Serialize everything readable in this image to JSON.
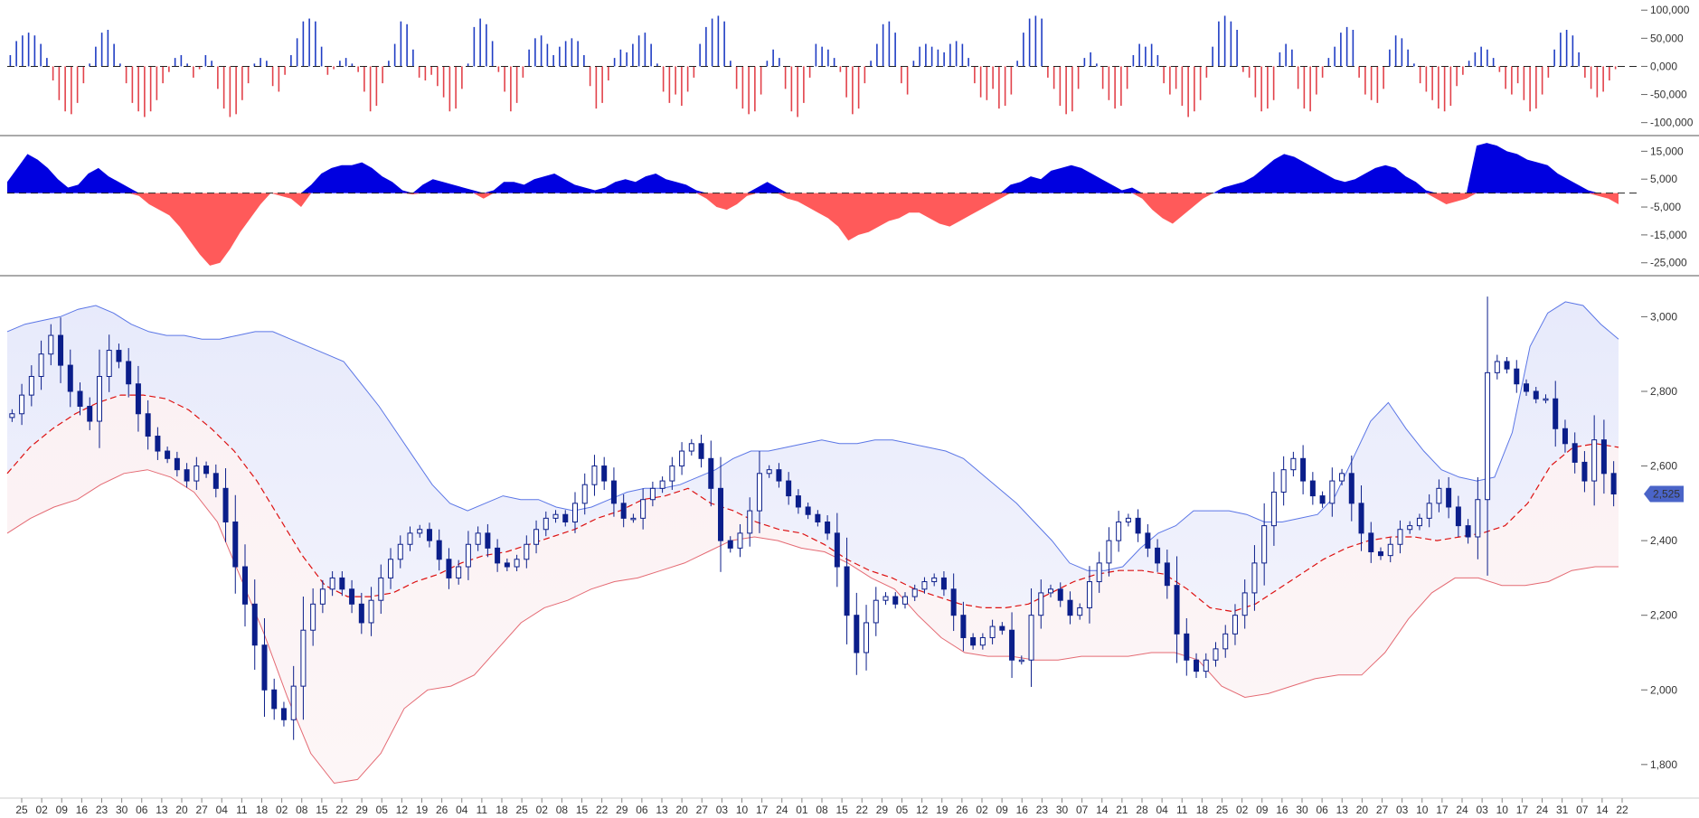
{
  "colors": {
    "up_bar": "#1f3dc4",
    "down_bar": "#e2424a",
    "pos_area": "#0000e0",
    "neg_area": "#ff5a5a",
    "candle": "#0b1e8a",
    "upper_band": "#5b76e6",
    "lower_band": "#e46a73",
    "mid_line": "#dd1111",
    "band_fill_top": "#eceefb",
    "band_fill_bottom": "#fbf0f2",
    "price_badge": "#4a64c8",
    "separator": "#555555"
  },
  "price_label": "2,525",
  "chart_data": [
    {
      "type": "bar",
      "panel": "oscillator-histogram",
      "y_ticks": [
        "100,000",
        "50,000",
        "0,000",
        "-50,000",
        "-100,000"
      ],
      "y_tick_values": [
        100000,
        50000,
        0,
        -50000,
        -100000
      ],
      "ylim": [
        -115000,
        110000
      ],
      "grid": false,
      "series": [
        {
          "values": [
            20000,
            45000,
            55000,
            60000,
            55000,
            40000,
            15000,
            -25000,
            -60000,
            -80000,
            -85000,
            -65000,
            -30000,
            5000,
            35000,
            60000,
            65000,
            40000,
            5000,
            -30000,
            -65000,
            -80000,
            -90000,
            -80000,
            -60000,
            -30000,
            -10000,
            15000,
            20000,
            5000,
            -20000,
            -5000,
            20000,
            10000,
            -40000,
            -75000,
            -90000,
            -85000,
            -60000,
            -30000,
            5000,
            15000,
            10000,
            -35000,
            -45000,
            -15000,
            20000,
            50000,
            80000,
            85000,
            80000,
            35000,
            -15000,
            -5000,
            10000,
            15000,
            5000,
            -10000,
            -45000,
            -80000,
            -70000,
            -30000,
            10000,
            40000,
            80000,
            75000,
            30000,
            -20000,
            -25000,
            -15000,
            -35000,
            -55000,
            -80000,
            -75000,
            -40000,
            5000,
            70000,
            85000,
            75000,
            45000,
            -10000,
            -45000,
            -80000,
            -65000,
            -20000,
            30000,
            50000,
            55000,
            40000,
            20000,
            35000,
            45000,
            50000,
            45000,
            20000,
            -35000,
            -75000,
            -65000,
            -25000,
            15000,
            30000,
            25000,
            40000,
            55000,
            60000,
            40000,
            5000,
            -45000,
            -65000,
            -50000,
            -70000,
            -45000,
            -20000,
            40000,
            70000,
            85000,
            90000,
            80000,
            10000,
            -40000,
            -75000,
            -85000,
            -80000,
            -50000,
            10000,
            30000,
            15000,
            -40000,
            -80000,
            -90000,
            -65000,
            -20000,
            40000,
            35000,
            30000,
            15000,
            -10000,
            -55000,
            -85000,
            -75000,
            -30000,
            10000,
            40000,
            75000,
            80000,
            60000,
            -30000,
            -50000,
            10000,
            35000,
            40000,
            35000,
            30000,
            25000,
            40000,
            45000,
            40000,
            15000,
            -30000,
            -55000,
            -60000,
            -40000,
            -75000,
            -70000,
            -50000,
            10000,
            60000,
            85000,
            90000,
            85000,
            -20000,
            -40000,
            -70000,
            -85000,
            -80000,
            -40000,
            15000,
            25000,
            5000,
            -40000,
            -60000,
            -75000,
            -70000,
            -40000,
            20000,
            40000,
            35000,
            40000,
            20000,
            -30000,
            -50000,
            -40000,
            -70000,
            -90000,
            -80000,
            -60000,
            -20000,
            35000,
            80000,
            90000,
            80000,
            65000,
            -10000,
            -20000,
            -55000,
            -80000,
            -75000,
            -60000,
            25000,
            40000,
            30000,
            -40000,
            -75000,
            -80000,
            -50000,
            -20000,
            15000,
            35000,
            60000,
            70000,
            65000,
            -20000,
            -50000,
            -60000,
            -65000,
            -40000,
            30000,
            55000,
            50000,
            30000,
            5000,
            -30000,
            -45000,
            -60000,
            -75000,
            -80000,
            -70000,
            -35000,
            -15000,
            10000,
            25000,
            35000,
            30000,
            15000,
            -10000,
            -40000,
            -50000,
            -30000,
            -60000,
            -80000,
            -75000,
            -50000,
            -20000,
            30000,
            60000,
            65000,
            55000,
            25000,
            -20000,
            -40000,
            -55000,
            -45000,
            -25000,
            -5000
          ]
        }
      ]
    },
    {
      "type": "area",
      "panel": "oscillator-area",
      "y_ticks": [
        "15,000",
        "5,000",
        "-5,000",
        "-15,000",
        "-25,000"
      ],
      "y_tick_values": [
        15000,
        5000,
        -5000,
        -15000,
        -25000
      ],
      "ylim": [
        -28000,
        19000
      ],
      "grid": false,
      "series": [
        {
          "values": [
            4000,
            9000,
            14000,
            12000,
            9000,
            5000,
            2000,
            3000,
            7000,
            9000,
            6000,
            4000,
            2000,
            -1000,
            -4000,
            -6000,
            -8000,
            -12000,
            -17000,
            -22000,
            -26000,
            -25000,
            -20000,
            -14000,
            -9000,
            -4000,
            0,
            -1000,
            -2000,
            -5000,
            3000,
            7000,
            9000,
            10000,
            10000,
            11000,
            9000,
            6000,
            4000,
            1000,
            -500,
            3000,
            5000,
            4000,
            3000,
            2000,
            1000,
            -2000,
            1000,
            4000,
            4000,
            3000,
            5000,
            6000,
            7000,
            5000,
            3000,
            2000,
            1000,
            2000,
            4000,
            5000,
            4000,
            6000,
            7000,
            5000,
            4000,
            3000,
            1000,
            -2000,
            -5000,
            -6000,
            -4000,
            -1000,
            2000,
            4000,
            2000,
            -2000,
            -3000,
            -5000,
            -7000,
            -9000,
            -12000,
            -17000,
            -15000,
            -14000,
            -12000,
            -10000,
            -9000,
            -7000,
            -7000,
            -9000,
            -11000,
            -12000,
            -10000,
            -8000,
            -6000,
            -4000,
            -2000,
            3000,
            4000,
            6000,
            5000,
            8000,
            9000,
            10000,
            9000,
            7000,
            5000,
            3000,
            1000,
            2000,
            -2000,
            -6000,
            -9000,
            -11000,
            -8000,
            -5000,
            -2000,
            0,
            2000,
            3000,
            4000,
            6000,
            9000,
            12000,
            14000,
            13000,
            11000,
            9000,
            7000,
            5000,
            4000,
            5000,
            7000,
            9000,
            10000,
            9000,
            6000,
            4000,
            1000,
            -2000,
            -4000,
            -3000,
            -2000,
            17000,
            18000,
            17000,
            15000,
            14000,
            12000,
            11000,
            10000,
            7000,
            5000,
            3000,
            1000,
            -1000,
            -2000,
            -4000
          ]
        }
      ]
    },
    {
      "type": "candlestick",
      "panel": "price",
      "y_ticks": [
        "3,000",
        "2,800",
        "2,600",
        "2,400",
        "2,200",
        "2,000",
        "1,800"
      ],
      "y_tick_values": [
        3000,
        2800,
        2600,
        2400,
        2200,
        2000,
        1800
      ],
      "ylim": [
        1710,
        3110
      ],
      "grid": false,
      "x_ticks": [
        "25",
        "02",
        "09",
        "16",
        "23",
        "30",
        "06",
        "13",
        "20",
        "27",
        "04",
        "11",
        "18",
        "02",
        "08",
        "15",
        "22",
        "29",
        "05",
        "12",
        "19",
        "26",
        "04",
        "11",
        "18",
        "25",
        "02",
        "08",
        "15",
        "22",
        "29",
        "06",
        "13",
        "20",
        "27",
        "03",
        "10",
        "17",
        "24",
        "01",
        "08",
        "15",
        "22",
        "29",
        "05",
        "12",
        "19",
        "26",
        "02",
        "09",
        "16",
        "23",
        "30",
        "07",
        "14",
        "21",
        "28",
        "04",
        "11",
        "18",
        "25",
        "02",
        "09",
        "16",
        "30",
        "06",
        "13",
        "20",
        "27",
        "03",
        "10",
        "17",
        "24",
        "03",
        "10",
        "17",
        "24",
        "31",
        "07",
        "14",
        "22"
      ],
      "close": [
        2740,
        2790,
        2840,
        2900,
        2950,
        2870,
        2800,
        2760,
        2720,
        2840,
        2910,
        2880,
        2820,
        2740,
        2680,
        2640,
        2620,
        2590,
        2560,
        2600,
        2580,
        2540,
        2450,
        2330,
        2230,
        2120,
        2000,
        1950,
        1920,
        2010,
        2160,
        2230,
        2270,
        2300,
        2270,
        2230,
        2180,
        2240,
        2300,
        2350,
        2390,
        2420,
        2430,
        2400,
        2350,
        2300,
        2330,
        2390,
        2420,
        2380,
        2340,
        2330,
        2350,
        2390,
        2430,
        2460,
        2470,
        2450,
        2500,
        2550,
        2600,
        2560,
        2500,
        2460,
        2460,
        2510,
        2540,
        2560,
        2600,
        2640,
        2660,
        2620,
        2540,
        2400,
        2380,
        2420,
        2480,
        2580,
        2590,
        2560,
        2520,
        2490,
        2470,
        2450,
        2420,
        2330,
        2200,
        2100,
        2180,
        2240,
        2250,
        2230,
        2250,
        2270,
        2290,
        2300,
        2270,
        2200,
        2140,
        2120,
        2140,
        2170,
        2160,
        2080,
        2080,
        2200,
        2260,
        2270,
        2240,
        2200,
        2220,
        2290,
        2340,
        2400,
        2450,
        2460,
        2420,
        2380,
        2340,
        2280,
        2150,
        2080,
        2050,
        2080,
        2110,
        2150,
        2200,
        2260,
        2340,
        2440,
        2530,
        2590,
        2620,
        2560,
        2520,
        2500,
        2560,
        2580,
        2500,
        2420,
        2370,
        2360,
        2390,
        2430,
        2440,
        2460,
        2500,
        2540,
        2490,
        2440,
        2410,
        2510,
        2850,
        2880,
        2860,
        2820,
        2800,
        2780,
        2780,
        2700,
        2660,
        2610,
        2560,
        2670,
        2580,
        2525
      ],
      "series": [
        {
          "name": "upper-band",
          "values": [
            2960,
            2980,
            2990,
            3000,
            3020,
            3030,
            3010,
            2980,
            2960,
            2950,
            2950,
            2940,
            2940,
            2950,
            2960,
            2960,
            2940,
            2920,
            2900,
            2880,
            2820,
            2760,
            2690,
            2620,
            2550,
            2500,
            2480,
            2500,
            2520,
            2510,
            2510,
            2490,
            2480,
            2490,
            2510,
            2530,
            2540,
            2540,
            2550,
            2570,
            2590,
            2620,
            2640,
            2640,
            2650,
            2660,
            2670,
            2660,
            2660,
            2670,
            2670,
            2660,
            2650,
            2640,
            2620,
            2580,
            2540,
            2500,
            2450,
            2400,
            2340,
            2320,
            2320,
            2330,
            2380,
            2420,
            2440,
            2480,
            2480,
            2480,
            2470,
            2450,
            2450,
            2460,
            2470,
            2520,
            2620,
            2720,
            2770,
            2700,
            2640,
            2590,
            2570,
            2560,
            2570,
            2690,
            2920,
            3010,
            3040,
            3030,
            2980,
            2940
          ]
        },
        {
          "name": "mid-line",
          "values": [
            2580,
            2650,
            2700,
            2740,
            2770,
            2790,
            2790,
            2780,
            2750,
            2700,
            2640,
            2560,
            2460,
            2360,
            2280,
            2250,
            2250,
            2260,
            2290,
            2310,
            2340,
            2360,
            2370,
            2390,
            2410,
            2430,
            2460,
            2480,
            2510,
            2520,
            2540,
            2500,
            2480,
            2450,
            2430,
            2420,
            2390,
            2350,
            2320,
            2300,
            2270,
            2250,
            2230,
            2220,
            2220,
            2230,
            2260,
            2290,
            2310,
            2320,
            2320,
            2310,
            2270,
            2220,
            2210,
            2230,
            2270,
            2310,
            2350,
            2380,
            2400,
            2410,
            2410,
            2400,
            2410,
            2420,
            2440,
            2500,
            2600,
            2650,
            2660,
            2650
          ]
        },
        {
          "name": "lower-band",
          "values": [
            2420,
            2460,
            2490,
            2510,
            2550,
            2580,
            2590,
            2570,
            2530,
            2450,
            2300,
            2150,
            1980,
            1830,
            1750,
            1760,
            1830,
            1950,
            2000,
            2010,
            2040,
            2110,
            2180,
            2220,
            2240,
            2270,
            2290,
            2300,
            2320,
            2340,
            2370,
            2400,
            2410,
            2400,
            2380,
            2370,
            2340,
            2300,
            2270,
            2200,
            2140,
            2100,
            2090,
            2090,
            2080,
            2080,
            2090,
            2090,
            2090,
            2100,
            2100,
            2080,
            2010,
            1980,
            1990,
            2010,
            2030,
            2040,
            2040,
            2100,
            2190,
            2260,
            2300,
            2300,
            2280,
            2280,
            2290,
            2320,
            2330,
            2330
          ]
        }
      ]
    }
  ]
}
